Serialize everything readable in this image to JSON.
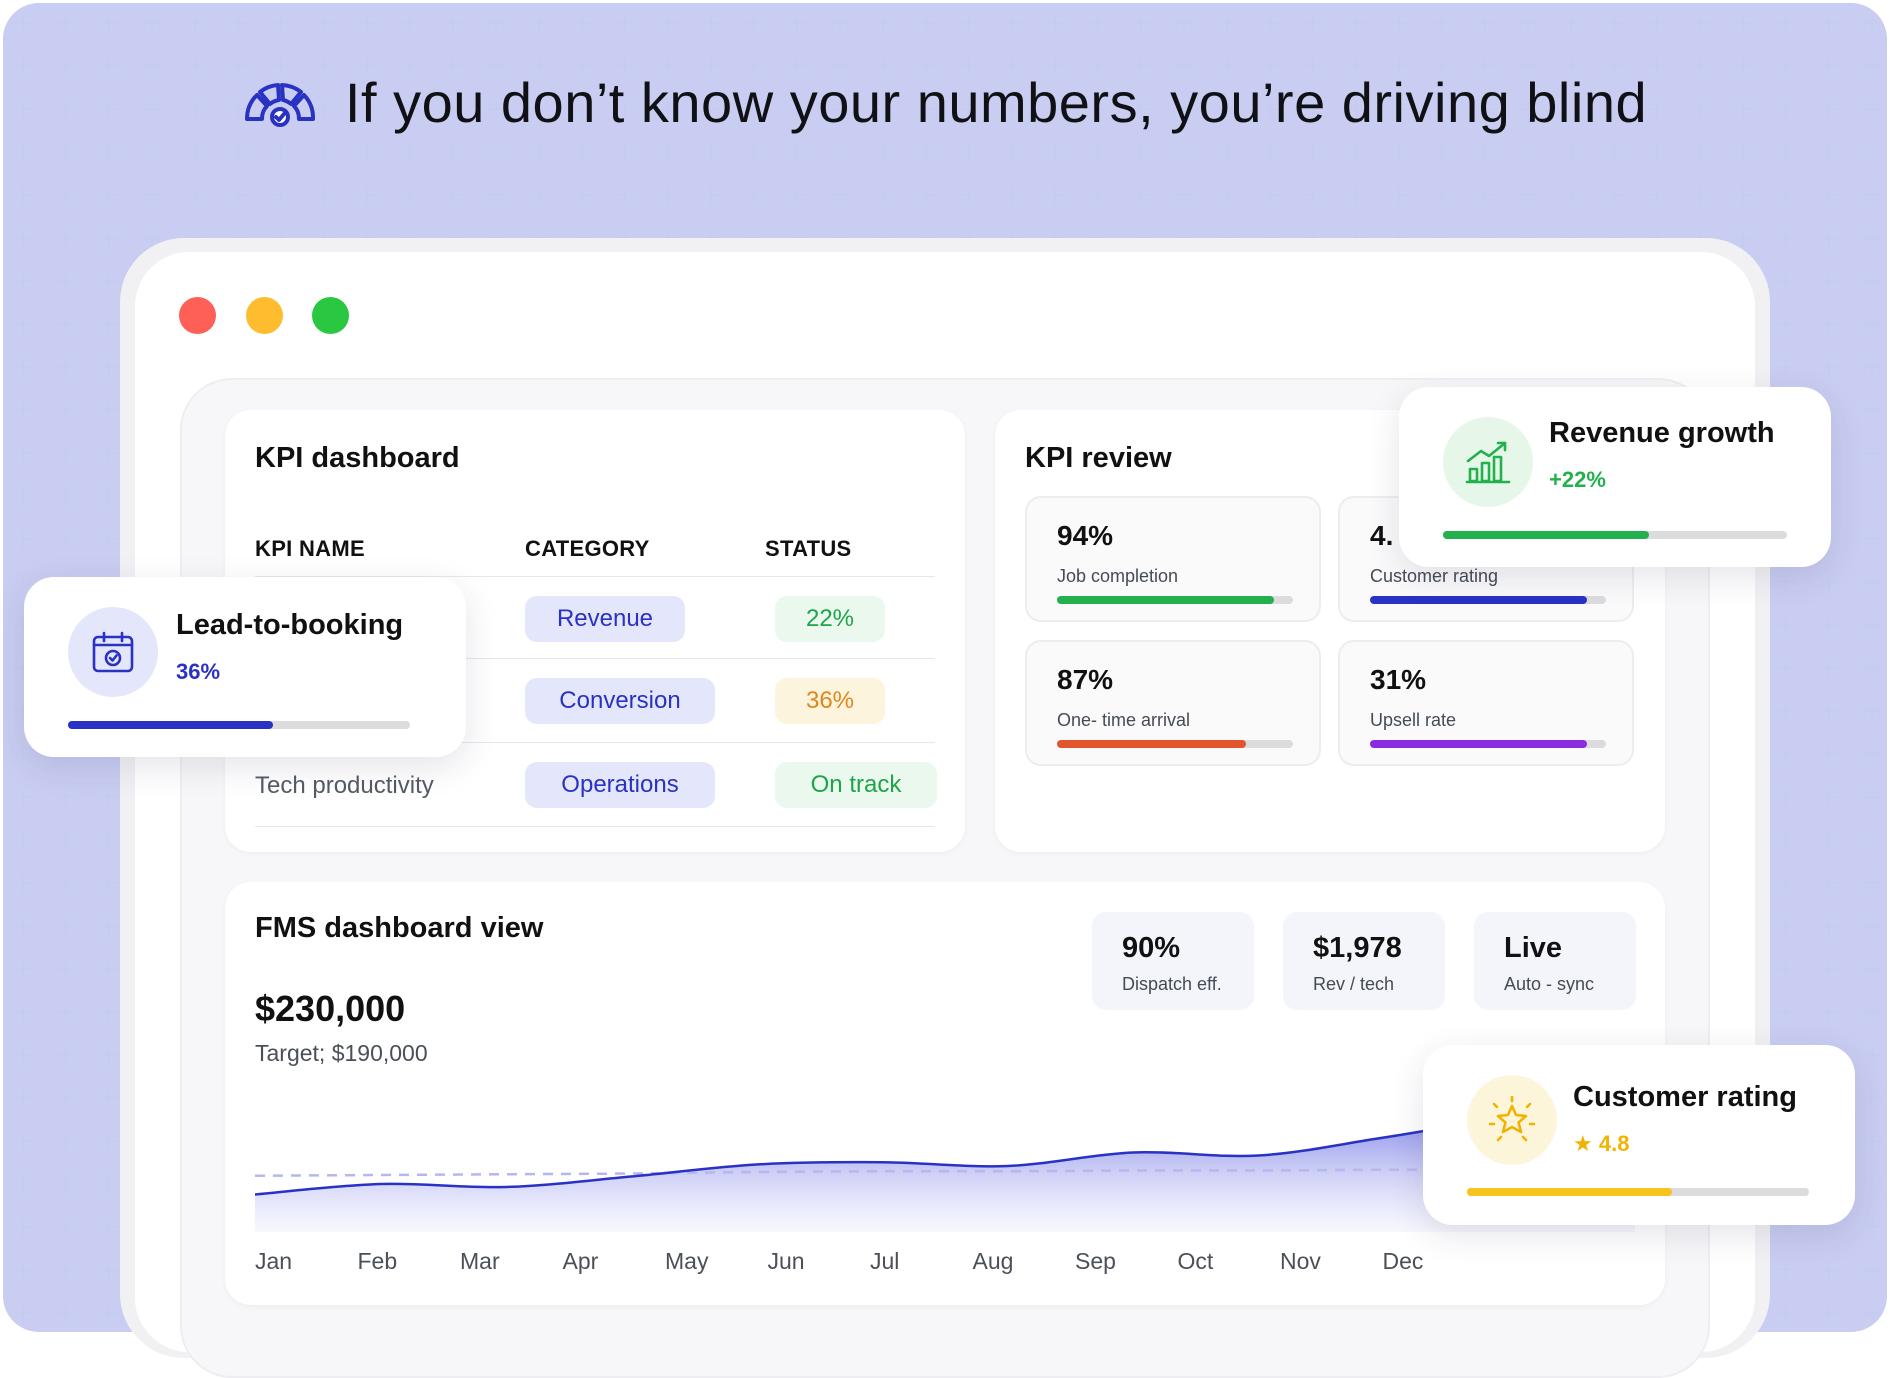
{
  "headline": "If you don’t know your numbers, you’re driving blind",
  "colors": {
    "blue": "#2a32c4",
    "green": "#22b14c",
    "orange": "#e2552c",
    "purple": "#8a2be2",
    "yellow": "#f7c31d",
    "chart_fill": "#7b7fe6"
  },
  "kpi_dashboard": {
    "title": "KPI dashboard",
    "headers": [
      "KPI NAME",
      "CATEGORY",
      "STATUS"
    ],
    "rows": [
      {
        "name": "",
        "category": "Revenue",
        "status": "22%"
      },
      {
        "name": "",
        "category": "Conversion",
        "status": "36%"
      },
      {
        "name": "Tech productivity",
        "category": "Operations",
        "status": "On track"
      }
    ]
  },
  "kpi_review": {
    "title": "KPI review",
    "items": [
      {
        "value": "94%",
        "label": "Job completion",
        "progress": 0.92
      },
      {
        "value": "4.",
        "label": "Customer rating",
        "progress": 0.92
      },
      {
        "value": "87%",
        "label": "One- time arrival",
        "progress": 0.8
      },
      {
        "value": "31%",
        "label": "Upsell rate",
        "progress": 0.92
      }
    ]
  },
  "fms": {
    "title": "FMS dashboard view",
    "amount": "$230,000",
    "target": "Target; $190,000",
    "stats": [
      {
        "value": "90%",
        "label": "Dispatch eff."
      },
      {
        "value": "$1,978",
        "label": "Rev / tech"
      },
      {
        "value": "Live",
        "label": "Auto - sync"
      }
    ],
    "months": [
      "Jan",
      "Feb",
      "Mar",
      "Apr",
      "May",
      "Jun",
      "Jul",
      "Aug",
      "Sep",
      "Oct",
      "Nov",
      "Dec"
    ]
  },
  "chart_data": {
    "type": "area",
    "x": [
      "Jan",
      "Feb",
      "Mar",
      "Apr",
      "May",
      "Jun",
      "Jul",
      "Aug",
      "Sep",
      "Oct",
      "Nov",
      "Dec"
    ],
    "series": [
      {
        "values": [
          50,
          64,
          60,
          74,
          90,
          93,
          88,
          106,
          102,
          126,
          152,
          162
        ]
      },
      {
        "values": [
          75,
          76,
          77,
          78,
          80,
          81,
          81,
          82,
          82,
          83,
          83,
          84
        ]
      }
    ],
    "ylim": [
      0,
      200
    ],
    "grid": false
  },
  "float_revenue": {
    "title": "Revenue growth",
    "value": "+22%",
    "progress": 0.6,
    "icon": "bar-chart-up-icon"
  },
  "float_lead": {
    "title": "Lead-to-booking",
    "value": "36%",
    "progress": 0.6,
    "icon": "calendar-check-icon"
  },
  "float_rating": {
    "title": "Customer rating",
    "value": "4.8",
    "star": "★",
    "progress": 0.6,
    "icon": "star-sparkle-icon"
  }
}
